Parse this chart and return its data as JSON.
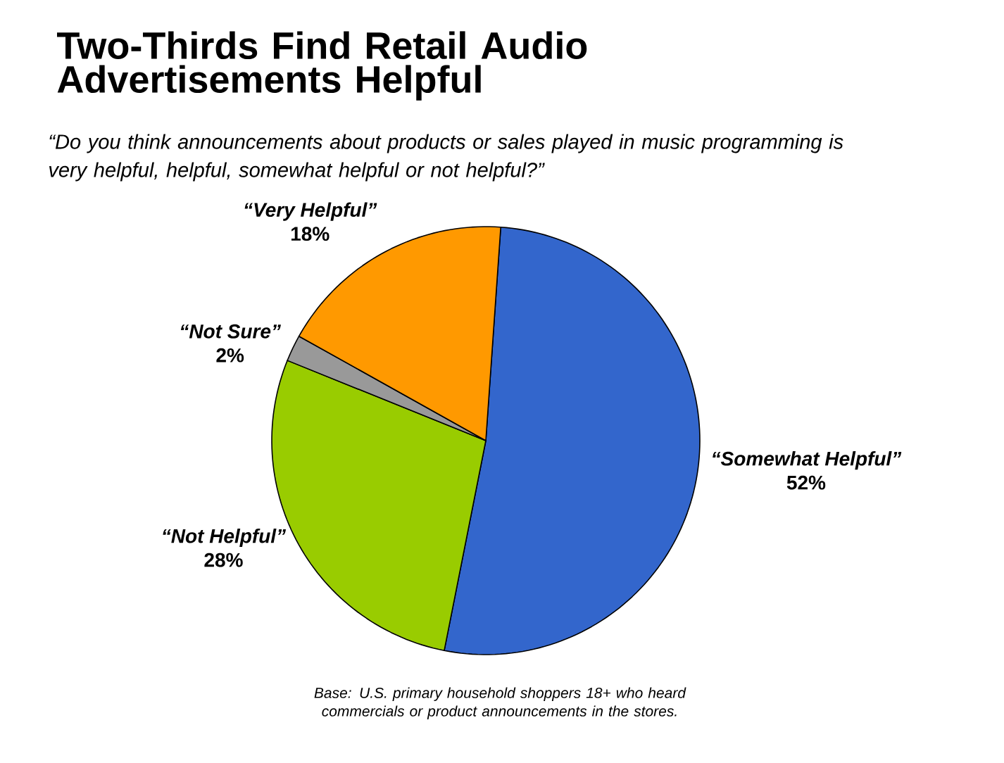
{
  "chart_data": {
    "type": "pie",
    "title": "Two-Thirds Find Retail Audio Advertisements Helpful",
    "subtitle": "“Do you think announcements about products or sales played in music programming is very helpful, helpful, somewhat helpful or not helpful?”",
    "categories": [
      "“Somewhat Helpful”",
      "“Not Helpful”",
      "“Not Sure”",
      "“Very Helpful”"
    ],
    "values": [
      52,
      28,
      2,
      18
    ],
    "value_labels": [
      "52%",
      "28%",
      "2%",
      "18%"
    ],
    "colors": [
      "#3366cc",
      "#99cc00",
      "#999999",
      "#ff9900"
    ],
    "annotations": [
      "Base: U.S. primary household shoppers 18+ who heard commercials or product announcements in the stores."
    ]
  }
}
